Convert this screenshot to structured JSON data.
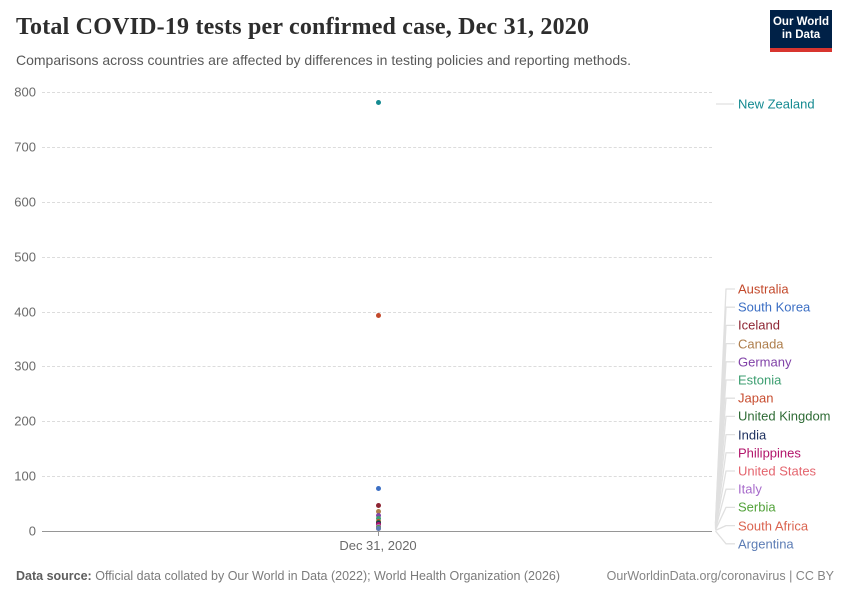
{
  "header": {
    "title": "Total COVID-19 tests per confirmed case, Dec 31, 2020",
    "subtitle": "Comparisons across countries are affected by differences in testing policies and reporting methods.",
    "logo": {
      "line1": "Our World",
      "line2": "in Data",
      "bg_color": "#002147",
      "accent_color": "#d8352f"
    }
  },
  "chart_data": {
    "type": "scatter",
    "title": "Total COVID-19 tests per confirmed case, Dec 31, 2020",
    "x_label": "Dec 31, 2020",
    "x": [
      "Dec 31, 2020"
    ],
    "ylim": [
      0,
      800
    ],
    "y_ticks": [
      0,
      100,
      200,
      300,
      400,
      500,
      600,
      700,
      800
    ],
    "grid": "horizontal-dashed",
    "legend_position": "right",
    "series": [
      {
        "name": "New Zealand",
        "value": 780,
        "color": "#148a91"
      },
      {
        "name": "Australia",
        "value": 392,
        "color": "#c3492b"
      },
      {
        "name": "South Korea",
        "value": 77,
        "color": "#3c6fc4"
      },
      {
        "name": "Iceland",
        "value": 47,
        "color": "#8e2533"
      },
      {
        "name": "Canada",
        "value": 36,
        "color": "#ae7e4c"
      },
      {
        "name": "Germany",
        "value": 28,
        "color": "#8143a8"
      },
      {
        "name": "Estonia",
        "value": 22,
        "color": "#3c9e70"
      },
      {
        "name": "Japan",
        "value": 18,
        "color": "#c84e31"
      },
      {
        "name": "United Kingdom",
        "value": 16,
        "color": "#2e6b35"
      },
      {
        "name": "India",
        "value": 14,
        "color": "#1c2f5e"
      },
      {
        "name": "Philippines",
        "value": 11,
        "color": "#b2156b"
      },
      {
        "name": "United States",
        "value": 9,
        "color": "#e4656e"
      },
      {
        "name": "Italy",
        "value": 8,
        "color": "#a76bcb"
      },
      {
        "name": "Serbia",
        "value": 6,
        "color": "#52a23a"
      },
      {
        "name": "South Africa",
        "value": 5,
        "color": "#da6450"
      },
      {
        "name": "Argentina",
        "value": 4,
        "color": "#5d7db5"
      }
    ]
  },
  "footer": {
    "source_label": "Data source:",
    "source_text": "Official data collated by Our World in Data (2022); World Health Organization (2026)",
    "link_text": "OurWorldinData.org/coronavirus | CC BY"
  }
}
